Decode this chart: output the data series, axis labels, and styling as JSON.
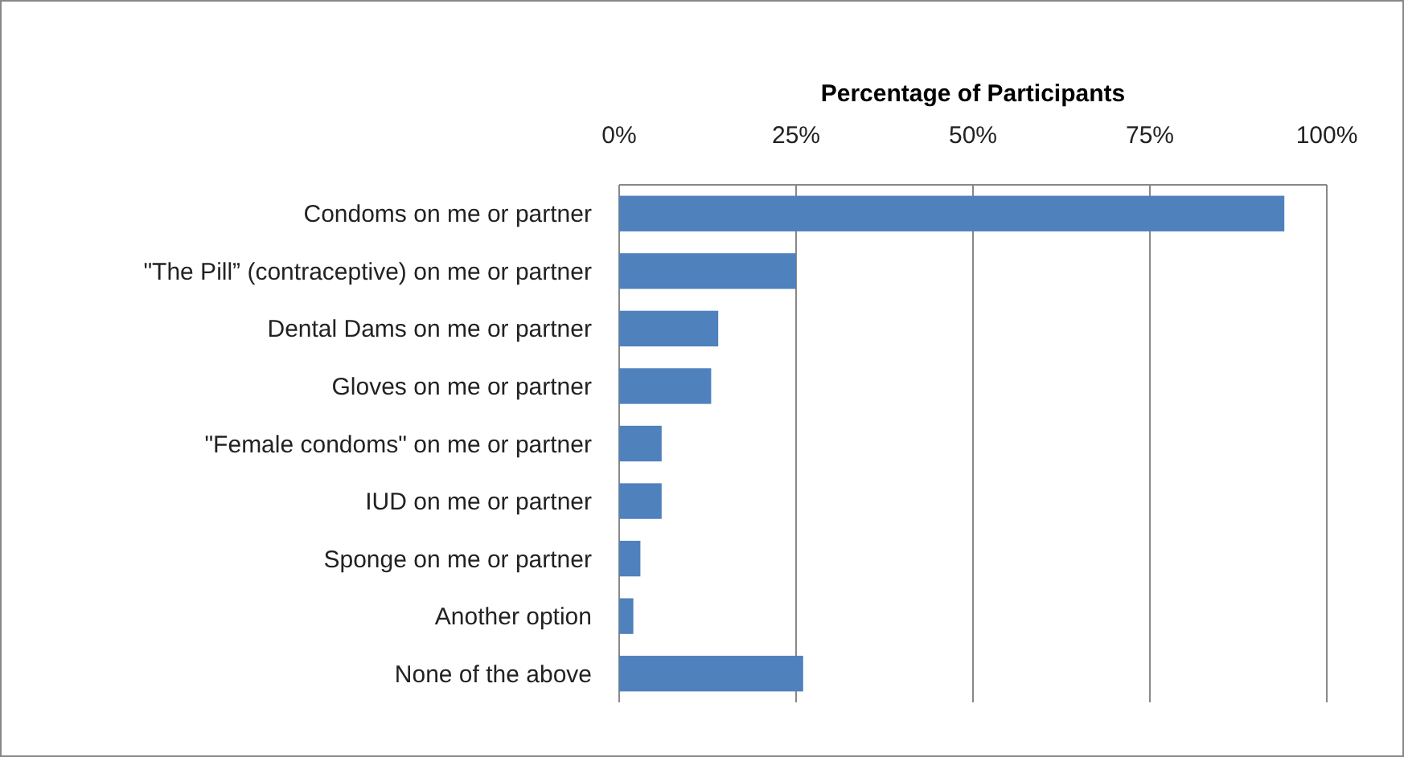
{
  "chart_data": {
    "type": "bar",
    "orientation": "horizontal",
    "xlabel": "Percentage of Participants",
    "categories": [
      "Condoms on me or partner",
      "\"The Pill” (contraceptive) on me or partner",
      "Dental Dams on me or partner",
      "Gloves on me or partner",
      "\"Female condoms\" on me or partner",
      "IUD on me or partner",
      "Sponge on me or partner",
      "Another option",
      "None of the above"
    ],
    "values": [
      94,
      25,
      14,
      13,
      6,
      6,
      3,
      2,
      26
    ],
    "color": "#4f81bd",
    "xlim": [
      0,
      100
    ],
    "xticks": [
      {
        "value": 0,
        "label": "0%"
      },
      {
        "value": 25,
        "label": "25%"
      },
      {
        "value": 50,
        "label": "50%"
      },
      {
        "value": 75,
        "label": "75%"
      },
      {
        "value": 100,
        "label": "100%"
      }
    ],
    "grid": "x"
  }
}
